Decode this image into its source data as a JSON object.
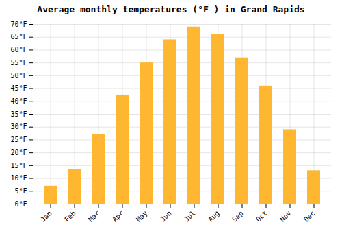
{
  "chart_data": {
    "type": "bar",
    "title": "Average monthly temperatures (°F ) in Grand Rapids",
    "categories": [
      "Jan",
      "Feb",
      "Mar",
      "Apr",
      "May",
      "Jun",
      "Jul",
      "Aug",
      "Sep",
      "Oct",
      "Nov",
      "Dec"
    ],
    "values": [
      7,
      13.5,
      27,
      42.5,
      55,
      64,
      69,
      66,
      57,
      46,
      29,
      13
    ],
    "color": "#FFB732",
    "ylim": [
      0,
      70
    ],
    "yticks": [
      {
        "value": 0,
        "label": "0°F"
      },
      {
        "value": 5,
        "label": "5°F"
      },
      {
        "value": 10,
        "label": "10°F"
      },
      {
        "value": 15,
        "label": "15°F"
      },
      {
        "value": 20,
        "label": "20°F"
      },
      {
        "value": 25,
        "label": "25°F"
      },
      {
        "value": 30,
        "label": "30°F"
      },
      {
        "value": 35,
        "label": "35°F"
      },
      {
        "value": 40,
        "label": "40°F"
      },
      {
        "value": 45,
        "label": "45°F"
      },
      {
        "value": 50,
        "label": "50°F"
      },
      {
        "value": 55,
        "label": "55°F"
      },
      {
        "value": 60,
        "label": "60°F"
      },
      {
        "value": 65,
        "label": "65°F"
      },
      {
        "value": 70,
        "label": "70°F"
      }
    ],
    "grid": true
  }
}
